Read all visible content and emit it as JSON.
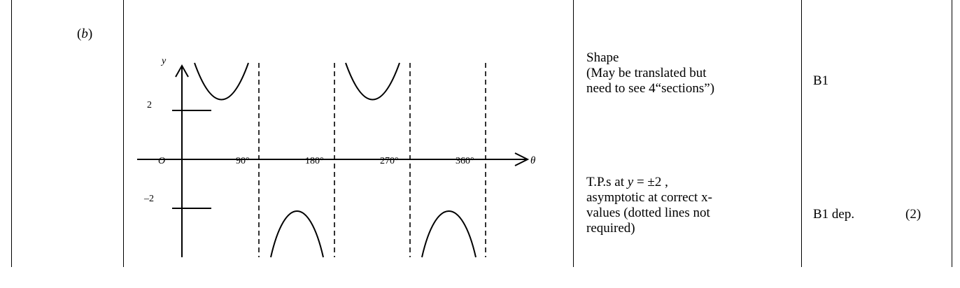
{
  "part": {
    "open": "(",
    "letter": "b",
    "close": ")"
  },
  "graph": {
    "y_axis_label": "y",
    "x_axis_label": "θ",
    "origin_label": "O",
    "y_tick_pos": "2",
    "y_tick_neg": "–2",
    "x_ticks": [
      "90°",
      "180°",
      "270°",
      "360°"
    ]
  },
  "notes": {
    "shape_lines": [
      "Shape",
      "(May be translated but",
      "need to see 4“sections”)"
    ],
    "tp_prefix": "T.P.s at ",
    "tp_var": "y",
    "tp_suffix": " = ±2 ,",
    "tp_lines": [
      "asymptotic at correct x-",
      "values (dotted lines not",
      "required)"
    ]
  },
  "marks": {
    "first": "B1",
    "second": "B1 dep.",
    "total": "(2)"
  }
}
